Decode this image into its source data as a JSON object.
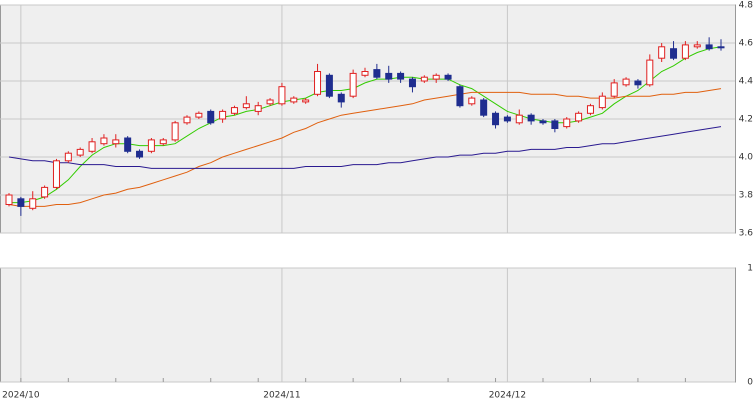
{
  "chart_data": [
    {
      "type": "candlestick",
      "categories": [
        null,
        "2024/10",
        null,
        null,
        null,
        null,
        null,
        null,
        null,
        null,
        null,
        null,
        null,
        null,
        null,
        null,
        null,
        null,
        null,
        null,
        null,
        null,
        null,
        "2024/11",
        null,
        null,
        null,
        null,
        null,
        null,
        null,
        null,
        null,
        null,
        null,
        null,
        null,
        null,
        null,
        null,
        null,
        null,
        "2024/12",
        null,
        null,
        null,
        null,
        null,
        null,
        null,
        null,
        null,
        null,
        null,
        null,
        null,
        null,
        null,
        null,
        null,
        null
      ],
      "open": [
        3.75,
        3.78,
        3.73,
        3.79,
        3.84,
        3.98,
        4.01,
        4.03,
        4.07,
        4.07,
        4.1,
        4.03,
        4.03,
        4.07,
        4.09,
        4.18,
        4.21,
        4.24,
        4.2,
        4.23,
        4.26,
        4.24,
        4.28,
        4.28,
        4.29,
        4.29,
        4.33,
        4.43,
        4.33,
        4.32,
        4.43,
        4.46,
        4.44,
        4.44,
        4.41,
        4.4,
        4.41,
        4.43,
        4.37,
        4.28,
        4.3,
        4.23,
        4.21,
        4.18,
        4.22,
        4.19,
        4.19,
        4.16,
        4.19,
        4.23,
        4.26,
        4.32,
        4.38,
        4.4,
        4.38,
        4.52,
        4.57,
        4.52,
        4.58,
        4.59,
        4.58
      ],
      "high": [
        3.81,
        3.79,
        3.82,
        3.85,
        3.99,
        4.03,
        4.05,
        4.1,
        4.12,
        4.12,
        4.11,
        4.04,
        4.1,
        4.1,
        4.19,
        4.22,
        4.24,
        4.25,
        4.25,
        4.27,
        4.32,
        4.29,
        4.31,
        4.39,
        4.32,
        4.31,
        4.49,
        4.44,
        4.34,
        4.46,
        4.47,
        4.49,
        4.48,
        4.45,
        4.42,
        4.43,
        4.44,
        4.44,
        4.38,
        4.32,
        4.31,
        4.24,
        4.22,
        4.25,
        4.23,
        4.2,
        4.2,
        4.21,
        4.24,
        4.28,
        4.34,
        4.41,
        4.42,
        4.41,
        4.54,
        4.6,
        4.61,
        4.61,
        4.61,
        4.63,
        4.62
      ],
      "low": [
        3.74,
        3.69,
        3.72,
        3.78,
        3.83,
        3.97,
        4.0,
        4.02,
        4.06,
        4.05,
        4.02,
        3.99,
        4.02,
        4.06,
        4.08,
        4.17,
        4.2,
        4.17,
        4.18,
        4.22,
        4.25,
        4.22,
        4.27,
        4.27,
        4.28,
        4.28,
        4.32,
        4.31,
        4.26,
        4.31,
        4.42,
        4.41,
        4.39,
        4.39,
        4.34,
        4.39,
        4.39,
        4.4,
        4.26,
        4.27,
        4.21,
        4.15,
        4.18,
        4.17,
        4.17,
        4.17,
        4.13,
        4.15,
        4.18,
        4.22,
        4.25,
        4.31,
        4.37,
        4.36,
        4.37,
        4.5,
        4.51,
        4.51,
        4.57,
        4.56,
        4.56
      ],
      "close": [
        3.8,
        3.74,
        3.78,
        3.84,
        3.98,
        4.02,
        4.04,
        4.08,
        4.1,
        4.09,
        4.03,
        4.0,
        4.09,
        4.09,
        4.18,
        4.21,
        4.23,
        4.18,
        4.24,
        4.26,
        4.28,
        4.27,
        4.3,
        4.37,
        4.31,
        4.3,
        4.45,
        4.32,
        4.29,
        4.44,
        4.45,
        4.42,
        4.41,
        4.41,
        4.37,
        4.42,
        4.43,
        4.41,
        4.27,
        4.31,
        4.22,
        4.17,
        4.19,
        4.22,
        4.19,
        4.18,
        4.15,
        4.2,
        4.23,
        4.27,
        4.32,
        4.39,
        4.41,
        4.38,
        4.51,
        4.58,
        4.52,
        4.59,
        4.59,
        4.57,
        4.58
      ],
      "up_color": "#e02020",
      "down_color": "#1f2d8f",
      "series": [
        {
          "color": "#33cc00",
          "values": [
            3.76,
            3.76,
            3.77,
            3.79,
            3.83,
            3.88,
            3.95,
            4.01,
            4.05,
            4.07,
            4.07,
            4.06,
            4.06,
            4.06,
            4.07,
            4.11,
            4.15,
            4.18,
            4.21,
            4.22,
            4.24,
            4.25,
            4.27,
            4.29,
            4.3,
            4.31,
            4.34,
            4.35,
            4.35,
            4.36,
            4.39,
            4.41,
            4.41,
            4.42,
            4.42,
            4.41,
            4.41,
            4.41,
            4.38,
            4.36,
            4.32,
            4.28,
            4.24,
            4.22,
            4.2,
            4.19,
            4.18,
            4.18,
            4.19,
            4.21,
            4.23,
            4.28,
            4.32,
            4.35,
            4.4,
            4.45,
            4.48,
            4.52,
            4.55,
            4.57,
            4.58
          ]
        },
        {
          "color": "#e0600f",
          "values": [
            3.75,
            3.74,
            3.74,
            3.74,
            3.75,
            3.75,
            3.76,
            3.78,
            3.8,
            3.81,
            3.83,
            3.84,
            3.86,
            3.88,
            3.9,
            3.92,
            3.95,
            3.97,
            4.0,
            4.02,
            4.04,
            4.06,
            4.08,
            4.1,
            4.13,
            4.15,
            4.18,
            4.2,
            4.22,
            4.23,
            4.24,
            4.25,
            4.26,
            4.27,
            4.28,
            4.3,
            4.31,
            4.32,
            4.33,
            4.34,
            4.34,
            4.34,
            4.34,
            4.34,
            4.33,
            4.33,
            4.33,
            4.32,
            4.32,
            4.31,
            4.31,
            4.31,
            4.32,
            4.32,
            4.32,
            4.33,
            4.33,
            4.34,
            4.34,
            4.35,
            4.36
          ]
        },
        {
          "color": "#2a1a90",
          "values": [
            4.0,
            3.99,
            3.98,
            3.98,
            3.97,
            3.97,
            3.96,
            3.96,
            3.96,
            3.95,
            3.95,
            3.95,
            3.94,
            3.94,
            3.94,
            3.94,
            3.94,
            3.94,
            3.94,
            3.94,
            3.94,
            3.94,
            3.94,
            3.94,
            3.94,
            3.95,
            3.95,
            3.95,
            3.95,
            3.96,
            3.96,
            3.96,
            3.97,
            3.97,
            3.98,
            3.99,
            4.0,
            4.0,
            4.01,
            4.01,
            4.02,
            4.02,
            4.03,
            4.03,
            4.04,
            4.04,
            4.04,
            4.05,
            4.05,
            4.06,
            4.07,
            4.07,
            4.08,
            4.09,
            4.1,
            4.11,
            4.12,
            4.13,
            4.14,
            4.15,
            4.16
          ]
        }
      ],
      "ylim": [
        3.6,
        4.8
      ],
      "yticks": [
        {
          "value": 3.6,
          "label": "3.6"
        },
        {
          "value": 3.8,
          "label": "3.8"
        },
        {
          "value": 4.0,
          "label": "4.0"
        },
        {
          "value": 4.2,
          "label": "4.2"
        },
        {
          "value": 4.4,
          "label": "4.4"
        },
        {
          "value": 4.6,
          "label": "4.6"
        },
        {
          "value": 4.8,
          "label": "4.8"
        }
      ],
      "grid": true
    },
    {
      "type": "panel",
      "ylim": [
        0,
        1
      ],
      "yticks": [
        0,
        1
      ],
      "grid": true
    }
  ]
}
